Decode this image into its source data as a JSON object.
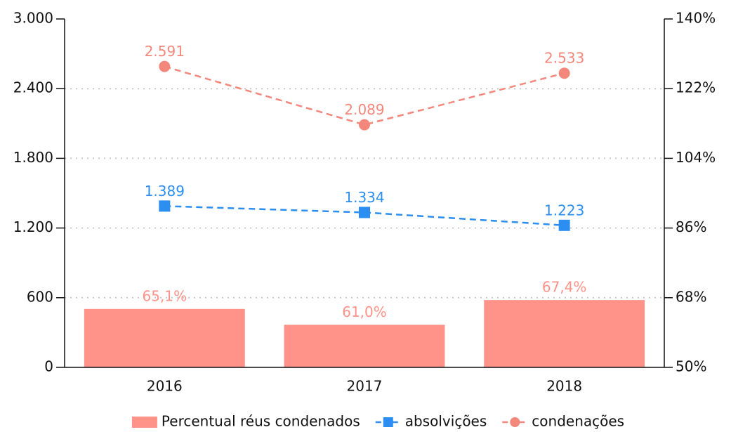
{
  "chart_data": {
    "type": "bar",
    "categories": [
      "2016",
      "2017",
      "2018"
    ],
    "series": [
      {
        "name": "Percentual réus condenados",
        "type": "bar",
        "axis": "y2",
        "color": "#ff938a",
        "values": [
          65.1,
          61.0,
          67.4
        ],
        "value_labels": [
          "65,1%",
          "61,0%",
          "67,4%"
        ]
      },
      {
        "name": "absolvições",
        "type": "line",
        "color": "#2b8ef0",
        "marker": "square",
        "values": [
          1389,
          1334,
          1223
        ],
        "value_labels": [
          "1.389",
          "1.334",
          "1.223"
        ]
      },
      {
        "name": "condenações",
        "type": "line",
        "color": "#f4877c",
        "marker": "circle",
        "values": [
          2591,
          2089,
          2533
        ],
        "value_labels": [
          "2.591",
          "2.089",
          "2.533"
        ]
      }
    ],
    "ylim": [
      0,
      3000
    ],
    "yticks": [
      0,
      600,
      {
        "value": 1200,
        "label": "1.200"
      },
      {
        "value": 1800,
        "label": "1.800"
      },
      {
        "value": 2400,
        "label": "2.400"
      },
      {
        "value": 3000,
        "label": "3.000"
      }
    ],
    "y2lim": [
      50,
      140
    ],
    "y2ticks": [
      {
        "value": 50,
        "label": "50%"
      },
      {
        "value": 68,
        "label": "68%"
      },
      {
        "value": 86,
        "label": "86%"
      },
      {
        "value": 104,
        "label": "104%"
      },
      {
        "value": 122,
        "label": "122%"
      },
      {
        "value": 140,
        "label": "140%"
      }
    ],
    "grid": true,
    "legend": "bottom"
  }
}
